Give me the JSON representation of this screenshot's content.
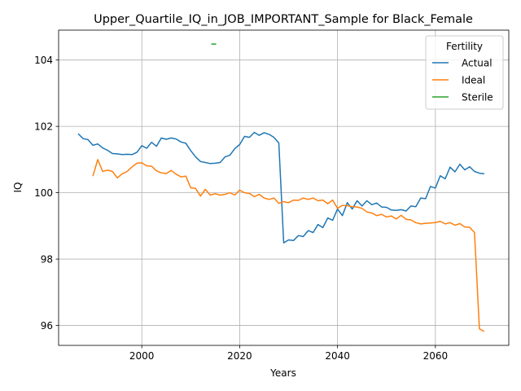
{
  "chart_data": {
    "type": "line",
    "title": "Upper_Quartile_IQ_in_JOB_IMPORTANT_Sample for Black_Female",
    "xlabel": "Years",
    "ylabel": "IQ",
    "xlim": [
      1983,
      2075
    ],
    "ylim": [
      95.4,
      104.9
    ],
    "xticks": [
      2000,
      2020,
      2040,
      2060
    ],
    "yticks": [
      96,
      98,
      100,
      102,
      104
    ],
    "grid": true,
    "legend": {
      "title": "Fertility",
      "placement": "top-right"
    },
    "series": [
      {
        "name": "Actual",
        "color": "#1f77b4",
        "x": [
          1987,
          1988,
          1989,
          1990,
          1991,
          1992,
          1993,
          1994,
          1995,
          1996,
          1997,
          1998,
          1999,
          2000,
          2001,
          2002,
          2003,
          2004,
          2005,
          2006,
          2007,
          2008,
          2009,
          2010,
          2011,
          2012,
          2013,
          2014,
          2015,
          2016,
          2017,
          2018,
          2019,
          2020,
          2021,
          2022,
          2023,
          2024,
          2025,
          2026,
          2027,
          2028,
          2029,
          2030,
          2031,
          2032,
          2033,
          2034,
          2035,
          2036,
          2037,
          2038,
          2039,
          2040,
          2041,
          2042,
          2043,
          2044,
          2045,
          2046,
          2047,
          2048,
          2049,
          2050,
          2051,
          2052,
          2053,
          2054,
          2055,
          2056,
          2057,
          2058,
          2059,
          2060,
          2061,
          2062,
          2063,
          2064,
          2065,
          2066,
          2067,
          2068,
          2069,
          2070
        ],
        "y": [
          101.78,
          101.63,
          101.6,
          101.43,
          101.47,
          101.35,
          101.28,
          101.18,
          101.17,
          101.15,
          101.16,
          101.15,
          101.22,
          101.42,
          101.34,
          101.52,
          101.4,
          101.65,
          101.61,
          101.65,
          101.62,
          101.53,
          101.49,
          101.27,
          101.08,
          100.94,
          100.91,
          100.88,
          100.89,
          100.91,
          101.08,
          101.13,
          101.33,
          101.45,
          101.7,
          101.67,
          101.82,
          101.73,
          101.81,
          101.76,
          101.67,
          101.5,
          98.49,
          98.58,
          98.56,
          98.71,
          98.68,
          98.86,
          98.8,
          99.04,
          98.95,
          99.24,
          99.17,
          99.51,
          99.31,
          99.7,
          99.51,
          99.76,
          99.6,
          99.76,
          99.64,
          99.69,
          99.57,
          99.56,
          99.48,
          99.47,
          99.49,
          99.45,
          99.6,
          99.58,
          99.84,
          99.82,
          100.19,
          100.14,
          100.51,
          100.42,
          100.77,
          100.63,
          100.86,
          100.69,
          100.78,
          100.64,
          100.59,
          100.57
        ]
      },
      {
        "name": "Ideal",
        "color": "#ff7f0e",
        "x": [
          1990,
          1991,
          1992,
          1993,
          1994,
          1995,
          1996,
          1997,
          1998,
          1999,
          2000,
          2001,
          2002,
          2003,
          2004,
          2005,
          2006,
          2007,
          2008,
          2009,
          2010,
          2011,
          2012,
          2013,
          2014,
          2015,
          2016,
          2017,
          2018,
          2019,
          2020,
          2021,
          2022,
          2023,
          2024,
          2025,
          2026,
          2027,
          2028,
          2029,
          2030,
          2031,
          2032,
          2033,
          2034,
          2035,
          2036,
          2037,
          2038,
          2039,
          2040,
          2041,
          2042,
          2043,
          2044,
          2045,
          2046,
          2047,
          2048,
          2049,
          2050,
          2051,
          2052,
          2053,
          2054,
          2055,
          2056,
          2057,
          2058,
          2059,
          2060,
          2061,
          2062,
          2063,
          2064,
          2065,
          2066,
          2067,
          2068,
          2069,
          2070
        ],
        "y": [
          100.5,
          101.0,
          100.64,
          100.68,
          100.64,
          100.45,
          100.57,
          100.64,
          100.78,
          100.89,
          100.9,
          100.81,
          100.8,
          100.66,
          100.6,
          100.58,
          100.67,
          100.56,
          100.48,
          100.5,
          100.15,
          100.13,
          99.9,
          100.1,
          99.93,
          99.97,
          99.93,
          99.95,
          100.0,
          99.93,
          100.08,
          100.0,
          99.98,
          99.88,
          99.95,
          99.84,
          99.8,
          99.84,
          99.68,
          99.73,
          99.7,
          99.78,
          99.77,
          99.84,
          99.8,
          99.84,
          99.76,
          99.78,
          99.67,
          99.78,
          99.53,
          99.62,
          99.61,
          99.58,
          99.57,
          99.53,
          99.42,
          99.39,
          99.31,
          99.35,
          99.27,
          99.3,
          99.21,
          99.32,
          99.2,
          99.18,
          99.1,
          99.06,
          99.08,
          99.09,
          99.1,
          99.14,
          99.06,
          99.1,
          99.02,
          99.07,
          98.97,
          98.96,
          98.8,
          95.9,
          95.82
        ]
      },
      {
        "name": "Sterile",
        "color": "#2ca02c",
        "x": [
          2014.2,
          2015.2
        ],
        "y": [
          104.48,
          104.48
        ]
      }
    ]
  }
}
